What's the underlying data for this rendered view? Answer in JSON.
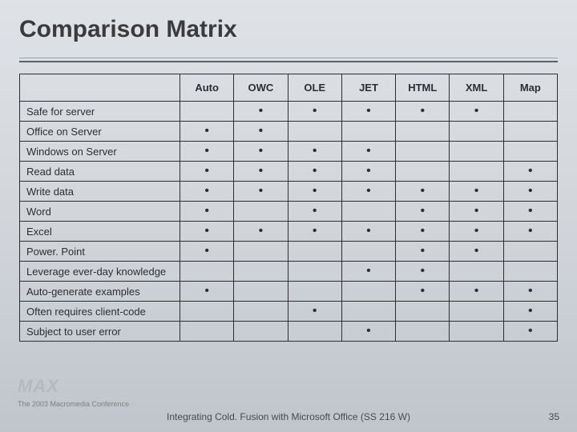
{
  "title": "Comparison Matrix",
  "columns": [
    "Auto",
    "OWC",
    "OLE",
    "JET",
    "HTML",
    "XML",
    "Map"
  ],
  "rows": [
    {
      "label": "Safe for server",
      "cells": [
        false,
        true,
        true,
        true,
        true,
        true,
        false
      ]
    },
    {
      "label": "Office on Server",
      "cells": [
        true,
        true,
        false,
        false,
        false,
        false,
        false
      ]
    },
    {
      "label": "Windows on Server",
      "cells": [
        true,
        true,
        true,
        true,
        false,
        false,
        false
      ]
    },
    {
      "label": "Read data",
      "cells": [
        true,
        true,
        true,
        true,
        false,
        false,
        true
      ]
    },
    {
      "label": "Write data",
      "cells": [
        true,
        true,
        true,
        true,
        true,
        true,
        true
      ]
    },
    {
      "label": "Word",
      "cells": [
        true,
        false,
        true,
        false,
        true,
        true,
        true
      ]
    },
    {
      "label": "Excel",
      "cells": [
        true,
        true,
        true,
        true,
        true,
        true,
        true
      ]
    },
    {
      "label": "Power. Point",
      "cells": [
        true,
        false,
        false,
        false,
        true,
        true,
        false
      ]
    },
    {
      "label": "Leverage ever-day knowledge",
      "cells": [
        false,
        false,
        false,
        true,
        true,
        false,
        false
      ]
    },
    {
      "label": "Auto-generate examples",
      "cells": [
        true,
        false,
        false,
        false,
        true,
        true,
        true
      ]
    },
    {
      "label": "Often requires client-code",
      "cells": [
        false,
        false,
        true,
        false,
        false,
        false,
        true
      ]
    },
    {
      "label": "Subject to user error",
      "cells": [
        false,
        false,
        false,
        true,
        false,
        false,
        true
      ]
    }
  ],
  "footer": {
    "center": "Integrating Cold. Fusion with Microsoft Office (SS 216 W)",
    "page": "35",
    "left_line": "The 2003 Macromedia Conference",
    "logo": "MAX"
  },
  "style": {
    "dot": "•",
    "title_fontsize": 30,
    "cell_fontsize": 13,
    "border_color": "#2e2e2e",
    "bg_gradient": [
      "#dfe2e6",
      "#cfd3d8",
      "#bfc5cc"
    ]
  }
}
